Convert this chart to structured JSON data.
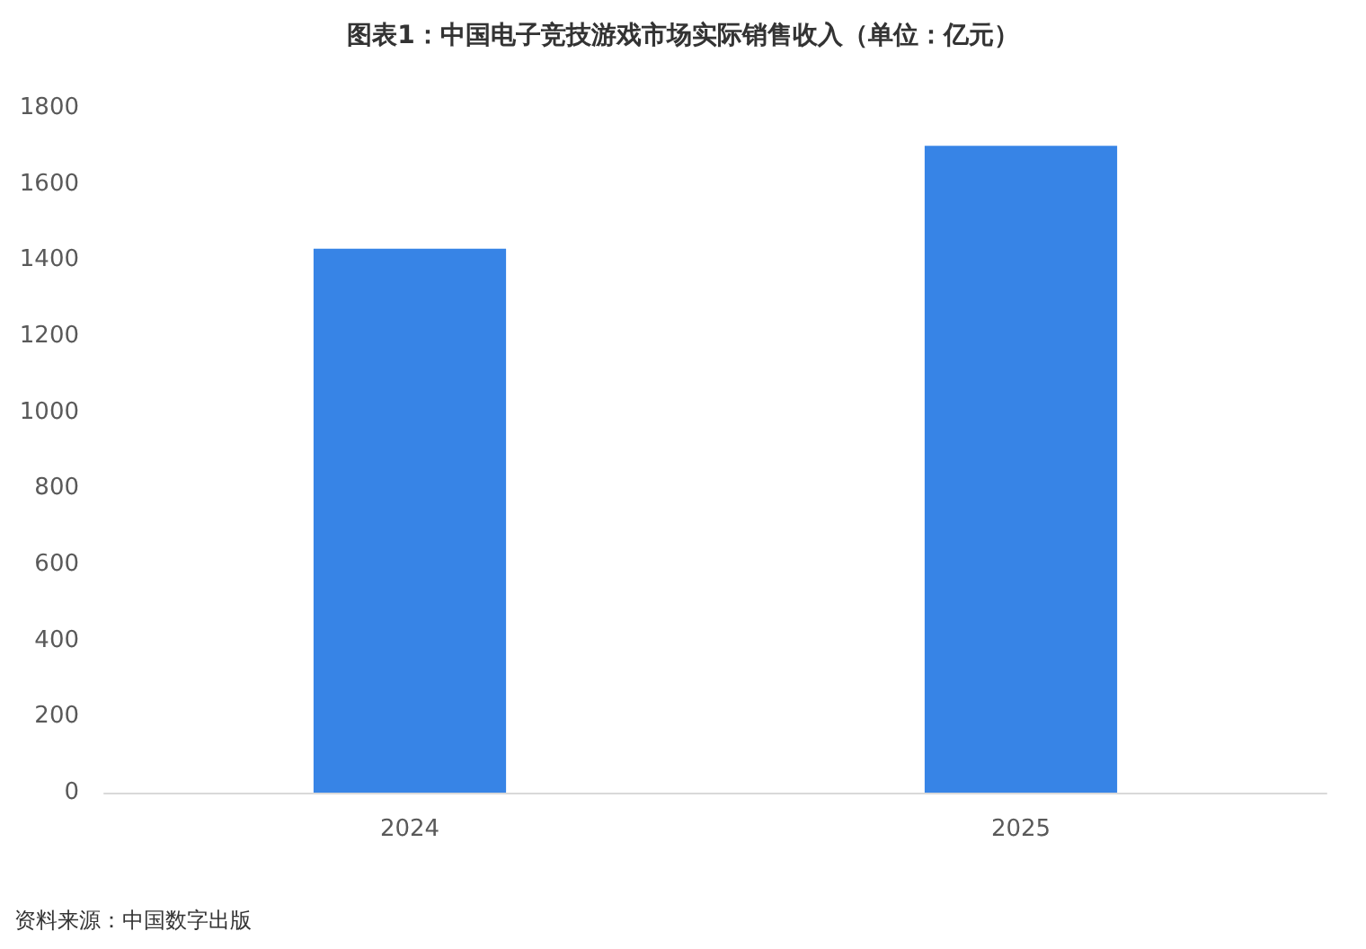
{
  "chart_data": {
    "type": "bar",
    "title": "图表1：中国电子竞技游戏市场实际销售收入（单位：亿元）",
    "categories": [
      "2024",
      "2025"
    ],
    "values": [
      1430,
      1700
    ],
    "color": "#3784e6",
    "ylim": [
      0,
      1800
    ],
    "yticks": [
      0,
      200,
      400,
      600,
      800,
      1000,
      1200,
      1400,
      1600,
      1800
    ],
    "grid": false,
    "annotations": [
      "资料来源：中国数字出版"
    ]
  }
}
